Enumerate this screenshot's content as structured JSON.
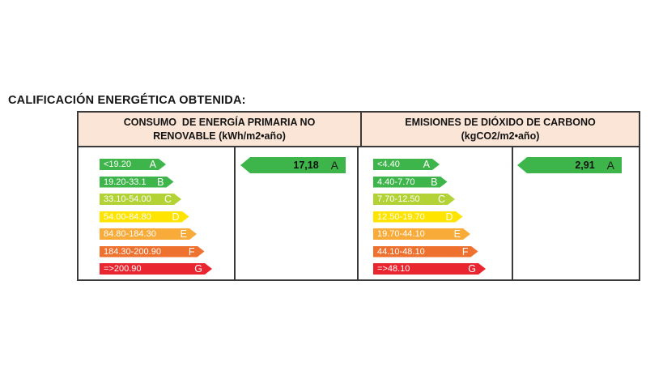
{
  "section": {
    "title": "CALIFICACIÓN ENERGÉTICA OBTENIDA:"
  },
  "colors": {
    "header_bg": "#fbe5d6",
    "border": "#3a3a3a",
    "result_green": "#3eb54a"
  },
  "panels": [
    {
      "header": "CONSUMO  DE ENERGÍA PRIMARIA NO\nRENOVABLE (kWh/m2•año)",
      "scale": [
        {
          "range": "<19.20",
          "letter": "A",
          "color": "#3eb54a"
        },
        {
          "range": "19.20-33.1",
          "letter": "B",
          "color": "#3eb54a"
        },
        {
          "range": "33.10-54.00",
          "letter": "C",
          "color": "#b2d235"
        },
        {
          "range": "54.00-84.80",
          "letter": "D",
          "color": "#ffe400"
        },
        {
          "range": "84.80-184.30",
          "letter": "E",
          "color": "#f9ab3a"
        },
        {
          "range": "184.30-200.90",
          "letter": "F",
          "color": "#ef712f"
        },
        {
          "range": "=>200.90",
          "letter": "G",
          "color": "#e92530"
        }
      ],
      "result": {
        "value": "17,18",
        "letter": "A",
        "color": "#3eb54a"
      }
    },
    {
      "header": "EMISIONES DE DIÓXIDO DE CARBONO\n(kgCO2/m2•año)",
      "scale": [
        {
          "range": "<4.40",
          "letter": "A",
          "color": "#3eb54a"
        },
        {
          "range": "4.40-7.70",
          "letter": "B",
          "color": "#3eb54a"
        },
        {
          "range": "7.70-12.50",
          "letter": "C",
          "color": "#b2d235"
        },
        {
          "range": "12.50-19.70",
          "letter": "D",
          "color": "#ffe400"
        },
        {
          "range": "19.70-44.10",
          "letter": "E",
          "color": "#f9ab3a"
        },
        {
          "range": "44.10-48.10",
          "letter": "F",
          "color": "#ef712f"
        },
        {
          "range": "=>48.10",
          "letter": "G",
          "color": "#e92530"
        }
      ],
      "result": {
        "value": "2,91",
        "letter": "A",
        "color": "#3eb54a"
      }
    }
  ],
  "chart_data": [
    {
      "type": "bar",
      "title": "CONSUMO DE ENERGÍA PRIMARIA NO RENOVABLE (kWh/m2•año)",
      "categories": [
        "A",
        "B",
        "C",
        "D",
        "E",
        "F",
        "G"
      ],
      "band_ranges": [
        "<19.20",
        "19.20-33.1",
        "33.10-54.00",
        "54.00-84.80",
        "84.80-184.30",
        "184.30-200.90",
        "=>200.90"
      ],
      "band_colors": [
        "#3eb54a",
        "#3eb54a",
        "#b2d235",
        "#ffe400",
        "#f9ab3a",
        "#ef712f",
        "#e92530"
      ],
      "obtained_value": 17.18,
      "obtained_label": "17,18",
      "obtained_class": "A"
    },
    {
      "type": "bar",
      "title": "EMISIONES DE DIÓXIDO DE CARBONO (kgCO2/m2•año)",
      "categories": [
        "A",
        "B",
        "C",
        "D",
        "E",
        "F",
        "G"
      ],
      "band_ranges": [
        "<4.40",
        "4.40-7.70",
        "7.70-12.50",
        "12.50-19.70",
        "19.70-44.10",
        "44.10-48.10",
        "=>48.10"
      ],
      "band_colors": [
        "#3eb54a",
        "#3eb54a",
        "#b2d235",
        "#ffe400",
        "#f9ab3a",
        "#ef712f",
        "#e92530"
      ],
      "obtained_value": 2.91,
      "obtained_label": "2,91",
      "obtained_class": "A"
    }
  ]
}
